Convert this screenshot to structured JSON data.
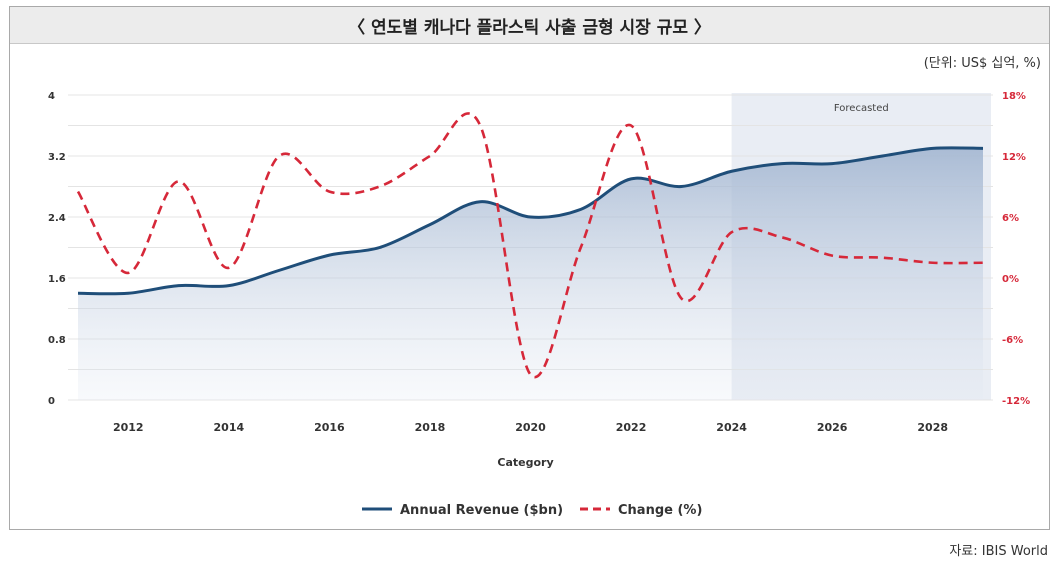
{
  "page": {
    "title": "〈 연도별 캐나다 플라스틱 사출 금형 시장 규모 〉",
    "unit": "(단위: US$ 십억, %)",
    "source": "자료: IBIS World"
  },
  "chart_data": {
    "type": "line",
    "xlabel": "Category",
    "x": [
      2011,
      2012,
      2013,
      2014,
      2015,
      2016,
      2017,
      2018,
      2019,
      2020,
      2021,
      2022,
      2023,
      2024,
      2025,
      2026,
      2027,
      2028,
      2029
    ],
    "xticks": [
      "2012",
      "2014",
      "2016",
      "2018",
      "2020",
      "2022",
      "2024",
      "2026",
      "2028"
    ],
    "y_left": {
      "ticks": [
        "0",
        "0.8",
        "1.6",
        "2.4",
        "3.2",
        "4"
      ],
      "range": [
        0,
        4
      ]
    },
    "y_right": {
      "ticks": [
        "-12%",
        "-6%",
        "0%",
        "6%",
        "12%",
        "18%"
      ],
      "range": [
        -12,
        18
      ]
    },
    "series": [
      {
        "name": "Annual Revenue ($bn)",
        "axis": "left",
        "color": "#1f4e79",
        "values": [
          1.4,
          1.4,
          1.5,
          1.5,
          1.7,
          1.9,
          2.0,
          2.3,
          2.6,
          2.4,
          2.5,
          2.9,
          2.8,
          3.0,
          3.1,
          3.1,
          3.2,
          3.3,
          3.3
        ]
      },
      {
        "name": "Change (%)",
        "axis": "right",
        "color": "#d62839",
        "values": [
          8.5,
          0.5,
          9.5,
          1.0,
          12.0,
          8.5,
          9.0,
          12.0,
          15.0,
          -9.5,
          3.0,
          15.0,
          -2.0,
          4.5,
          4.0,
          2.2,
          2.0,
          1.5,
          1.5
        ]
      }
    ],
    "annotation": {
      "label": "Forecasted",
      "x_range": [
        2024,
        2029
      ]
    },
    "legend_position": "bottom",
    "grid": "horizontal"
  }
}
